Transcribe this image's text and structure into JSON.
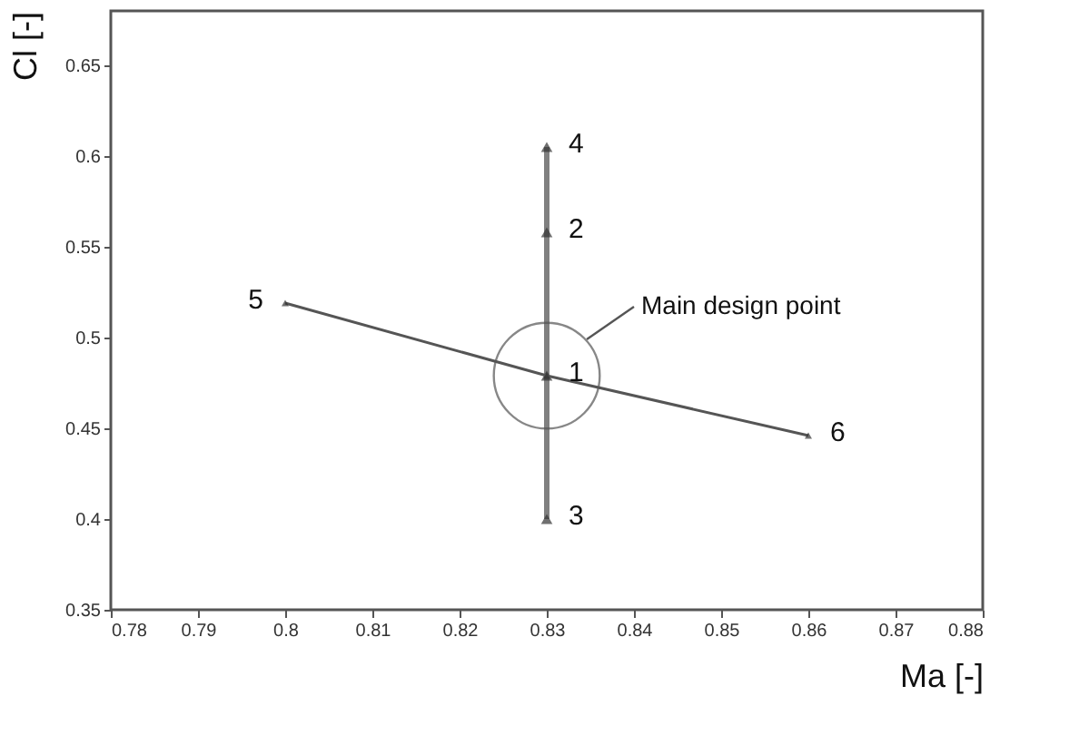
{
  "chart_data": {
    "type": "line",
    "xlabel": "Ma [-]",
    "ylabel": "Cl [-]",
    "xlim": [
      0.78,
      0.88
    ],
    "xticks": [
      0.78,
      0.79,
      0.8,
      0.81,
      0.82,
      0.83,
      0.84,
      0.85,
      0.86,
      0.87,
      0.88
    ],
    "ylim": [
      0.35,
      0.68
    ],
    "yticks": [
      0.35,
      0.4,
      0.45,
      0.5,
      0.55,
      0.6,
      0.65
    ],
    "grid": false,
    "marker": "triangle",
    "line_style": "solid",
    "series": [
      {
        "color": "#808080",
        "x": [
          0.83,
          0.83,
          0.83,
          0.83
        ],
        "values": [
          0.4,
          0.479,
          0.558,
          0.605
        ]
      },
      {
        "color": "#555555",
        "x": [
          0.8,
          0.83,
          0.86
        ],
        "values": [
          0.519,
          0.479,
          0.446
        ]
      }
    ],
    "annotations": [
      {
        "text": "1",
        "x": 0.83,
        "y": 0.479
      },
      {
        "text": "2",
        "x": 0.83,
        "y": 0.558
      },
      {
        "text": "3",
        "x": 0.83,
        "y": 0.4
      },
      {
        "text": "4",
        "x": 0.83,
        "y": 0.605
      },
      {
        "text": "5",
        "x": 0.8,
        "y": 0.519
      },
      {
        "text": "6",
        "x": 0.86,
        "y": 0.446
      },
      "Main design point"
    ]
  }
}
